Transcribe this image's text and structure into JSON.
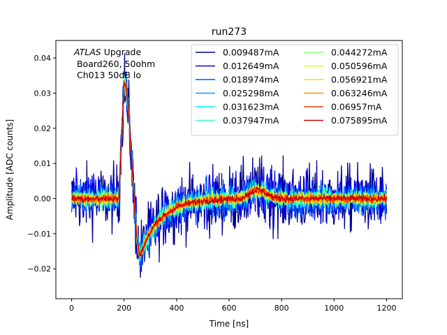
{
  "chart_data": {
    "type": "line",
    "title": "run273",
    "xlabel": "Time [ns]",
    "ylabel": "Amplitude [ADC counts]",
    "xlim": [
      -60,
      1260
    ],
    "ylim": [
      -0.0285,
      0.045
    ],
    "xticks": [
      0,
      200,
      400,
      600,
      800,
      1000,
      1200
    ],
    "xtick_labels": [
      "0",
      "200",
      "400",
      "600",
      "800",
      "1000",
      "1200"
    ],
    "yticks": [
      -0.02,
      -0.01,
      0.0,
      0.01,
      0.02,
      0.03,
      0.04
    ],
    "ytick_labels": [
      "−0.02",
      "−0.01",
      "0.00",
      "0.01",
      "0.02",
      "0.03",
      "0.04"
    ],
    "annotation": {
      "italic": "ATLAS",
      "rest": " Upgrade",
      "line2": " Board260, 50ohm",
      "line3": " Ch013 50dB lo"
    },
    "legend_location": "upper-right",
    "series": [
      {
        "name": "0.009487mA",
        "color": "#00008f",
        "noise": 0.0048
      },
      {
        "name": "0.012649mA",
        "color": "#0000ee",
        "noise": 0.0036
      },
      {
        "name": "0.018974mA",
        "color": "#0050ff",
        "noise": 0.0025
      },
      {
        "name": "0.025298mA",
        "color": "#00a0ff",
        "noise": 0.0019
      },
      {
        "name": "0.031623mA",
        "color": "#00ebe8",
        "noise": 0.0015
      },
      {
        "name": "0.037947mA",
        "color": "#40ffb8",
        "noise": 0.0012
      },
      {
        "name": "0.044272mA",
        "color": "#8fff6b",
        "noise": 0.001
      },
      {
        "name": "0.050596mA",
        "color": "#c8ff2f",
        "noise": 0.0009
      },
      {
        "name": "0.056921mA",
        "color": "#ffd600",
        "noise": 0.0008
      },
      {
        "name": "0.063246mA",
        "color": "#ff8e00",
        "noise": 0.0007
      },
      {
        "name": "0.06957mA",
        "color": "#ff3a00",
        "noise": 0.0006
      },
      {
        "name": "0.075895mA",
        "color": "#c80000",
        "noise": 0.0005
      }
    ],
    "pulse_shape": {
      "baseline": 0.0,
      "t_rise_start": 180,
      "peak_time": 200,
      "peak_value": 0.033,
      "zero_cross_time": 228,
      "min_time": 262,
      "min_value": -0.016,
      "tail_tau": 75,
      "bump_time": 710,
      "bump_value": 0.0025,
      "t_end": 1200,
      "dt": 2
    }
  }
}
